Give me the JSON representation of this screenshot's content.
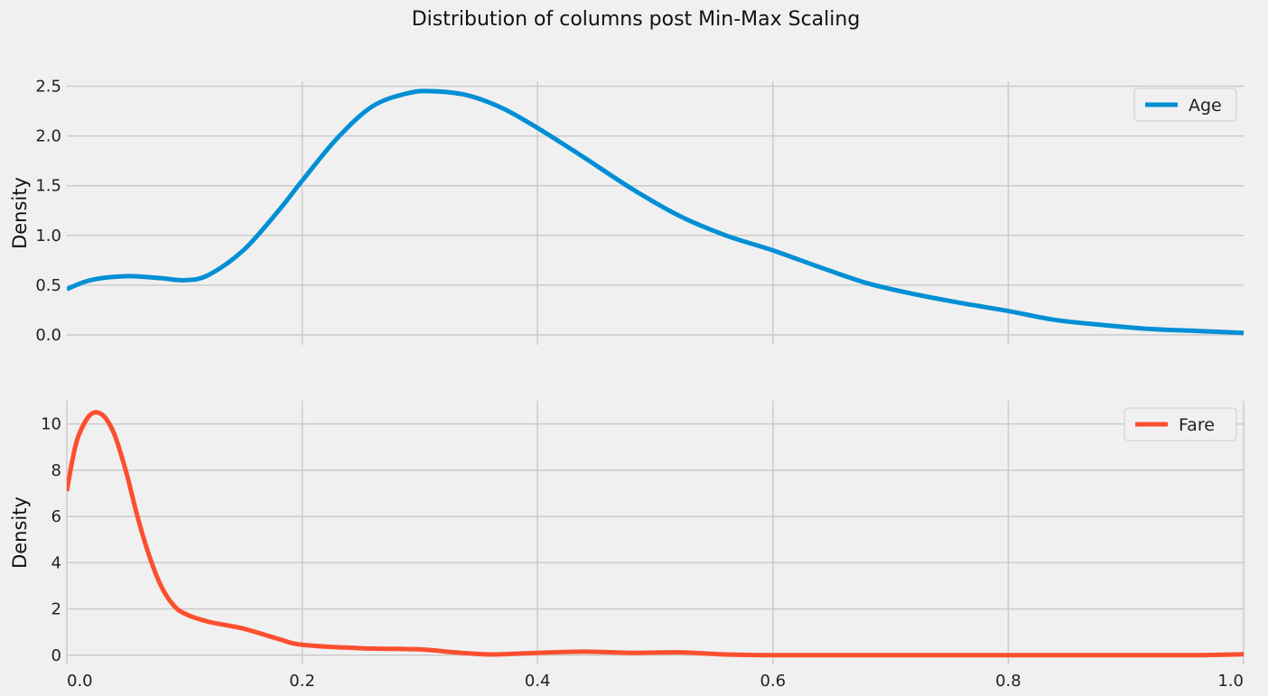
{
  "chart_data": {
    "type": "line",
    "title": "Distribution of columns post Min-Max Scaling",
    "subplots": [
      {
        "id": "age",
        "ylabel": "Density",
        "xlabel": "",
        "xlim": [
          0,
          1
        ],
        "ylim": [
          -0.1,
          2.55
        ],
        "xticks": [
          0.2,
          0.4,
          0.6,
          0.8
        ],
        "xtick_labels": [],
        "yticks": [
          0.0,
          0.5,
          1.0,
          1.5,
          2.0,
          2.5
        ],
        "ytick_labels": [
          "0.0",
          "0.5",
          "1.0",
          "1.5",
          "2.0",
          "2.5"
        ],
        "legend": "top-right",
        "series": [
          {
            "name": "Age",
            "color": "#008fd5",
            "x": [
              0,
              0.02,
              0.05,
              0.08,
              0.1,
              0.12,
              0.15,
              0.18,
              0.2,
              0.23,
              0.26,
              0.29,
              0.31,
              0.34,
              0.37,
              0.4,
              0.44,
              0.48,
              0.52,
              0.56,
              0.6,
              0.64,
              0.68,
              0.72,
              0.76,
              0.8,
              0.84,
              0.88,
              0.92,
              0.96,
              1.0
            ],
            "y": [
              0.46,
              0.55,
              0.59,
              0.57,
              0.55,
              0.6,
              0.85,
              1.25,
              1.55,
              1.98,
              2.3,
              2.43,
              2.45,
              2.41,
              2.28,
              2.08,
              1.78,
              1.47,
              1.2,
              1.0,
              0.85,
              0.68,
              0.52,
              0.41,
              0.32,
              0.24,
              0.15,
              0.1,
              0.06,
              0.04,
              0.02
            ]
          }
        ]
      },
      {
        "id": "fare",
        "ylabel": "Density",
        "xlabel": "",
        "xlim": [
          0,
          1
        ],
        "ylim": [
          -0.4,
          11
        ],
        "xticks": [
          0.0,
          0.2,
          0.4,
          0.6,
          0.8,
          1.0
        ],
        "xtick_labels": [
          "0.0",
          "0.2",
          "0.4",
          "0.6",
          "0.8",
          "1.0"
        ],
        "yticks": [
          0,
          2,
          4,
          6,
          8,
          10
        ],
        "ytick_labels": [
          "0",
          "2",
          "4",
          "6",
          "8",
          "10"
        ],
        "legend": "top-right",
        "series": [
          {
            "name": "Fare",
            "color": "#fc4f30",
            "x": [
              0,
              0.005,
              0.01,
              0.02,
              0.03,
              0.04,
              0.05,
              0.06,
              0.07,
              0.08,
              0.09,
              0.1,
              0.12,
              0.15,
              0.18,
              0.2,
              0.25,
              0.3,
              0.33,
              0.36,
              0.4,
              0.44,
              0.48,
              0.52,
              0.56,
              0.6,
              0.7,
              0.8,
              0.9,
              0.96,
              1.0
            ],
            "y": [
              7.1,
              8.5,
              9.5,
              10.4,
              10.4,
              9.6,
              8.0,
              6.0,
              4.3,
              3.0,
              2.2,
              1.8,
              1.45,
              1.15,
              0.7,
              0.45,
              0.3,
              0.25,
              0.12,
              0.03,
              0.1,
              0.15,
              0.1,
              0.12,
              0.03,
              0.0,
              0.0,
              0.0,
              0.0,
              0.0,
              0.04
            ]
          }
        ]
      }
    ]
  }
}
